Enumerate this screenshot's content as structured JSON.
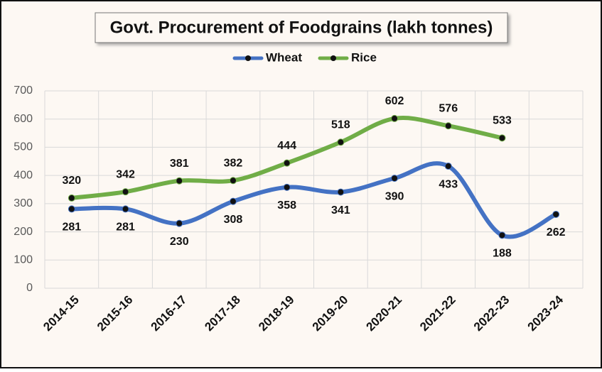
{
  "chart_data": {
    "type": "line",
    "title": "Govt. Procurement of Foodgrains (lakh tonnes)",
    "categories": [
      "2014-15",
      "2015-16",
      "2016-17",
      "2017-18",
      "2018-19",
      "2019-20",
      "2020-21",
      "2021-22",
      "2022-23",
      "2023-24"
    ],
    "series": [
      {
        "name": "Wheat",
        "color": "#4472c4",
        "values": [
          281,
          281,
          230,
          308,
          358,
          341,
          390,
          433,
          188,
          262
        ]
      },
      {
        "name": "Rice",
        "color": "#70ad47",
        "values": [
          320,
          342,
          381,
          382,
          444,
          518,
          602,
          576,
          533,
          null
        ]
      }
    ],
    "ylim": [
      0,
      700
    ],
    "yticks": [
      0,
      100,
      200,
      300,
      400,
      500,
      600,
      700
    ],
    "grid": true,
    "smooth": true,
    "legend": "top"
  }
}
